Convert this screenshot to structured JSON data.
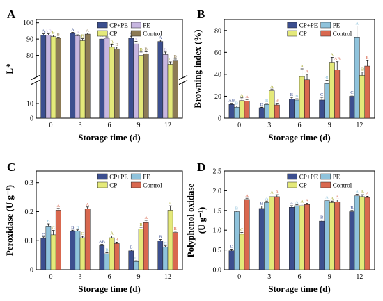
{
  "colors": {
    "CP+PE": "#3c4f8f",
    "PE": "#8fc3dc",
    "CP": "#e4e97a",
    "Control": "#d9684f",
    "PE_A": "#c7b6e0",
    "Control_A": "#8c7a55",
    "PE_B": "#b6b0dc",
    "Control_B": "#8e7b53"
  },
  "chart_data": [
    {
      "panel": "A",
      "type": "bar",
      "categories": [
        "0",
        "3",
        "6",
        "9",
        "12"
      ],
      "xlabel": "Storage time (d)",
      "ylabel": "L*",
      "axis_break": true,
      "yticks_top": [
        80,
        90,
        100
      ],
      "yticks_bottom": [
        0,
        10
      ],
      "legend": [
        "CP+PE",
        "PE",
        "CP",
        "Control"
      ],
      "series": [
        {
          "name": "CP+PE",
          "color_key": "CP+PE",
          "values": [
            92.5,
            93.5,
            90.0,
            90.5,
            88.5
          ],
          "err": [
            0.7,
            0.6,
            0.7,
            1.2,
            0.8
          ],
          "sig": [
            "A",
            "A",
            "A",
            "A",
            "A"
          ]
        },
        {
          "name": "PE",
          "color_key": "PE_A",
          "values": [
            92.5,
            92.0,
            90.5,
            87.0,
            80.5
          ],
          "err": [
            0.7,
            0.6,
            0.8,
            1.5,
            1.5
          ],
          "sig": [
            "AB",
            "A",
            "A",
            "A",
            "B"
          ]
        },
        {
          "name": "CP",
          "color_key": "CP",
          "values": [
            91.5,
            89.0,
            85.0,
            80.0,
            74.5
          ],
          "err": [
            0.8,
            1.2,
            1.5,
            2.0,
            1.5
          ],
          "sig": [
            "B",
            "B",
            "B",
            "B",
            "C"
          ]
        },
        {
          "name": "Control",
          "color_key": "Control_A",
          "values": [
            90.5,
            93.0,
            84.0,
            81.0,
            76.5
          ],
          "err": [
            0.6,
            0.6,
            1.0,
            1.2,
            1.2
          ],
          "sig": [
            "B",
            "A",
            "B",
            "B",
            "B"
          ]
        }
      ]
    },
    {
      "panel": "B",
      "type": "bar",
      "categories": [
        "0",
        "3",
        "6",
        "9",
        "12"
      ],
      "xlabel": "Storage time (d)",
      "ylabel": "Browning index (%)",
      "ylim": [
        0,
        90
      ],
      "yticks": [
        0,
        20,
        40,
        60,
        80
      ],
      "legend": [
        "CP+PE",
        "PE",
        "CP",
        "Control"
      ],
      "series": [
        {
          "name": "CP+PE",
          "color_key": "CP+PE",
          "values": [
            12.5,
            9.5,
            17.5,
            16.5,
            20.0
          ],
          "err": [
            1.0,
            0.5,
            1.5,
            2.5,
            1.0
          ],
          "sig": [
            "AB",
            "B",
            "B",
            "C",
            "C"
          ]
        },
        {
          "name": "PE",
          "color_key": "PE",
          "values": [
            10.0,
            12.5,
            16.5,
            31.5,
            74.0
          ],
          "err": [
            1.0,
            0.8,
            1.2,
            3.0,
            10.0
          ],
          "sig": [
            "B",
            "B",
            "B",
            "BC",
            "A"
          ]
        },
        {
          "name": "CP",
          "color_key": "CP",
          "values": [
            16.0,
            25.0,
            38.0,
            51.0,
            39.0
          ],
          "err": [
            2.5,
            1.5,
            7.0,
            4.5,
            3.0
          ],
          "sig": [
            "A",
            "A",
            "A",
            "A",
            "B"
          ]
        },
        {
          "name": "Control",
          "color_key": "Control",
          "values": [
            15.5,
            12.0,
            35.0,
            44.0,
            47.5
          ],
          "err": [
            1.5,
            1.5,
            5.0,
            7.5,
            5.0
          ],
          "sig": [
            "A",
            "B",
            "A",
            "AB",
            "B"
          ]
        }
      ]
    },
    {
      "panel": "C",
      "type": "bar",
      "categories": [
        "0",
        "3",
        "6",
        "9",
        "12"
      ],
      "xlabel": "Storage time (d)",
      "ylabel": "Peroxidase (U g⁻¹)",
      "ylim": [
        0,
        0.34
      ],
      "yticks": [
        0,
        0.1,
        0.2,
        0.3
      ],
      "legend": [
        "CP+PE",
        "PE",
        "CP",
        "Control"
      ],
      "series": [
        {
          "name": "CP+PE",
          "color_key": "CP+PE",
          "values": [
            0.108,
            0.132,
            0.083,
            0.065,
            0.1
          ],
          "err": [
            0.005,
            0.004,
            0.004,
            0.003,
            0.004
          ],
          "sig": [
            "C",
            "B",
            "AB",
            "B",
            "B"
          ]
        },
        {
          "name": "PE",
          "color_key": "PE",
          "values": [
            0.15,
            0.133,
            0.055,
            0.028,
            0.078
          ],
          "err": [
            0.008,
            0.004,
            0.004,
            0.003,
            0.004
          ],
          "sig": [
            "B",
            "B",
            "B",
            "C",
            "C"
          ]
        },
        {
          "name": "CP",
          "color_key": "CP",
          "values": [
            0.12,
            0.11,
            0.11,
            0.14,
            0.205
          ],
          "err": [
            0.015,
            0.005,
            0.006,
            0.006,
            0.015
          ],
          "sig": [
            "C",
            "C",
            "A",
            "B",
            "A"
          ]
        },
        {
          "name": "Control",
          "color_key": "Control",
          "values": [
            0.205,
            0.21,
            0.09,
            0.162,
            0.128
          ],
          "err": [
            0.006,
            0.006,
            0.005,
            0.008,
            0.004
          ],
          "sig": [
            "A",
            "A",
            "B",
            "A",
            "B"
          ]
        }
      ]
    },
    {
      "panel": "D",
      "type": "bar",
      "categories": [
        "0",
        "3",
        "6",
        "9",
        "12"
      ],
      "xlabel": "Storage time (d)",
      "ylabel": "Polyphenol oxidase",
      "ylabel2": "(U g⁻¹)",
      "ylim": [
        0,
        2.5
      ],
      "yticks": [
        0.0,
        0.5,
        1.0,
        1.5,
        2.0,
        2.5
      ],
      "legend": [
        "CP+PE",
        "PE",
        "CP",
        "Control"
      ],
      "series": [
        {
          "name": "CP+PE",
          "color_key": "CP+PE",
          "values": [
            0.48,
            1.55,
            1.58,
            1.23,
            1.47
          ],
          "err": [
            0.04,
            0.06,
            0.04,
            0.03,
            0.03
          ],
          "sig": [
            "D",
            "B",
            "A",
            "B",
            "B"
          ]
        },
        {
          "name": "PE",
          "color_key": "PE",
          "values": [
            1.47,
            1.7,
            1.62,
            1.75,
            1.87
          ],
          "err": [
            0.02,
            0.04,
            0.03,
            0.02,
            0.04
          ],
          "sig": [
            "B",
            "A",
            "A",
            "A",
            "A"
          ]
        },
        {
          "name": "CP",
          "color_key": "CP",
          "values": [
            0.9,
            1.85,
            1.62,
            1.7,
            1.85
          ],
          "err": [
            0.04,
            0.04,
            0.04,
            0.04,
            0.05
          ],
          "sig": [
            "C",
            "A",
            "A",
            "A",
            "A"
          ]
        },
        {
          "name": "Control",
          "color_key": "Control",
          "values": [
            1.78,
            1.85,
            1.65,
            1.72,
            1.83
          ],
          "err": [
            0.03,
            0.05,
            0.03,
            0.05,
            0.03
          ],
          "sig": [
            "A",
            "A",
            "A",
            "A",
            "A"
          ]
        }
      ]
    }
  ]
}
